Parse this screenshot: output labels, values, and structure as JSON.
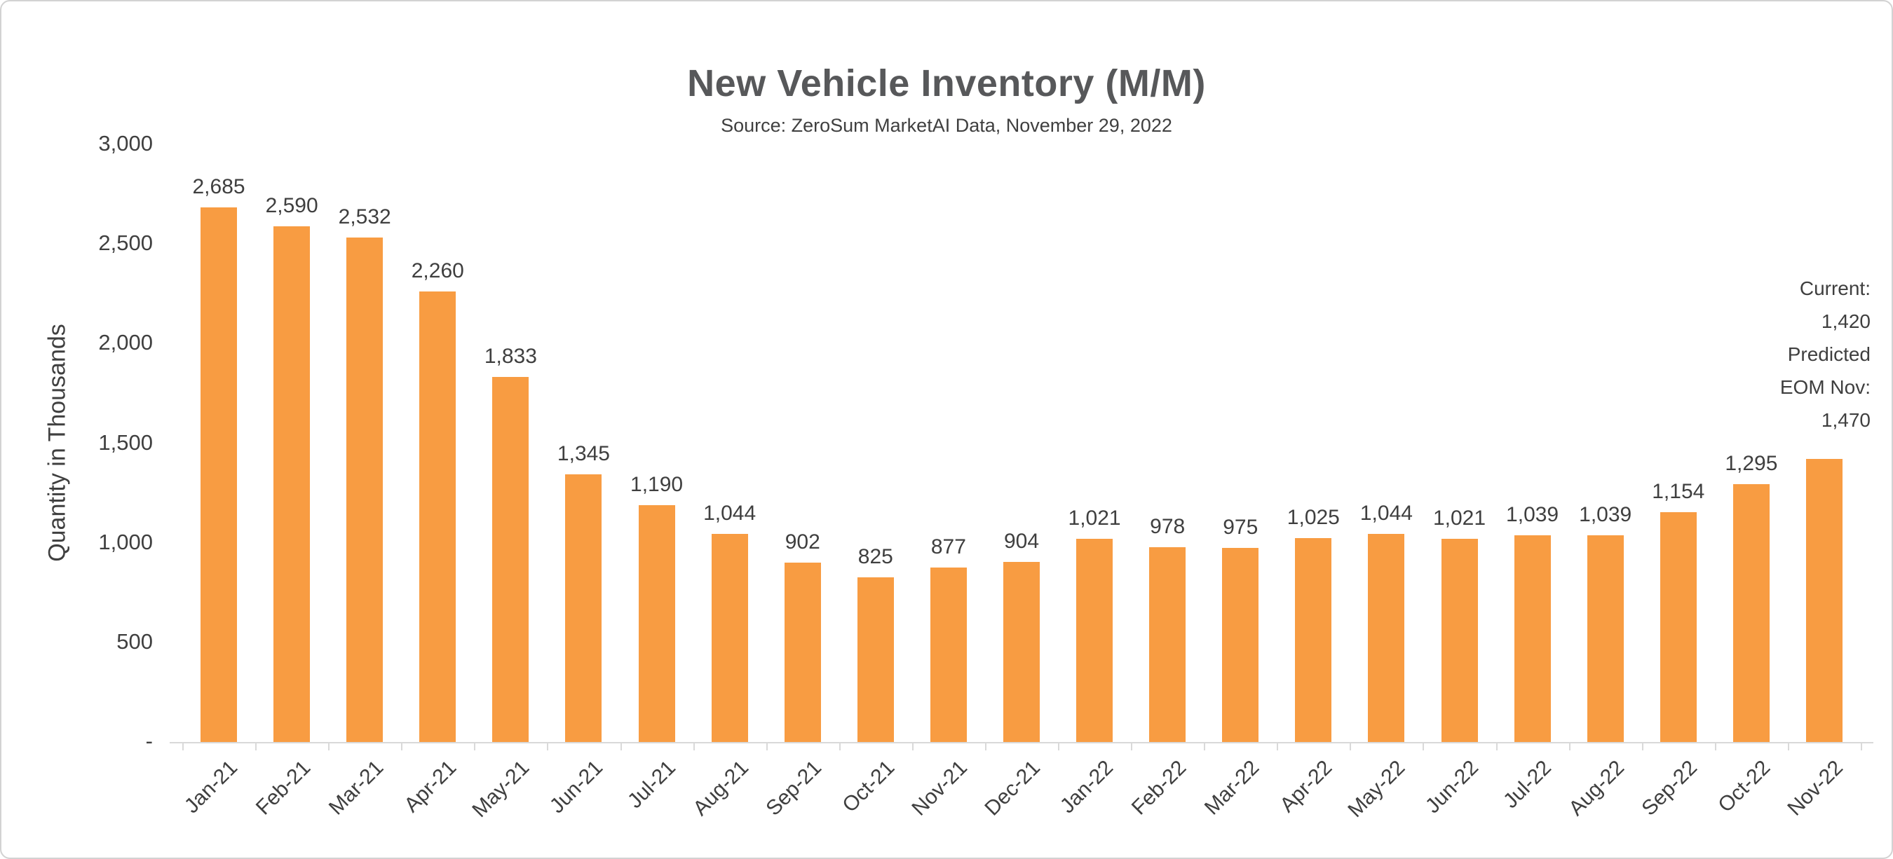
{
  "chart_data": {
    "type": "bar",
    "title": "New Vehicle Inventory (M/M)",
    "subtitle": "Source: ZeroSum MarketAI Data, November 29, 2022",
    "xlabel": "",
    "ylabel": "Quantity in Thousands",
    "ylim": [
      0,
      3000
    ],
    "grid": false,
    "legend": "none",
    "yticks": [
      {
        "value": 3000,
        "label": "3,000"
      },
      {
        "value": 2500,
        "label": "2,500"
      },
      {
        "value": 2000,
        "label": "2,000"
      },
      {
        "value": 1500,
        "label": "1,500"
      },
      {
        "value": 1000,
        "label": "1,000"
      },
      {
        "value": 500,
        "label": "500"
      },
      {
        "value": 0,
        "label": "-"
      }
    ],
    "categories": [
      "Jan-21",
      "Feb-21",
      "Mar-21",
      "Apr-21",
      "May-21",
      "Jun-21",
      "Jul-21",
      "Aug-21",
      "Sep-21",
      "Oct-21",
      "Nov-21",
      "Dec-21",
      "Jan-22",
      "Feb-22",
      "Mar-22",
      "Apr-22",
      "May-22",
      "Jun-22",
      "Jul-22",
      "Aug-22",
      "Sep-22",
      "Oct-22",
      "Nov-22"
    ],
    "values": [
      2685,
      2590,
      2532,
      2260,
      1833,
      1345,
      1190,
      1044,
      902,
      825,
      877,
      904,
      1021,
      978,
      975,
      1025,
      1044,
      1021,
      1039,
      1039,
      1154,
      1295,
      1420
    ],
    "data_labels": [
      "2,685",
      "2,590",
      "2,532",
      "2,260",
      "1,833",
      "1,345",
      "1,190",
      "1,044",
      "902",
      "825",
      "877",
      "904",
      "1,021",
      "978",
      "975",
      "1,025",
      "1,044",
      "1,021",
      "1,039",
      "1,039",
      "1,154",
      "1,295",
      ""
    ],
    "annotation": {
      "lines": [
        "Current:",
        "1,420",
        "Predicted",
        "EOM Nov:",
        "1,470"
      ]
    }
  },
  "colors": {
    "bar": "#f89c42",
    "title": "#57585a",
    "text": "#3f3f3f",
    "axis_line": "#d9d9d9",
    "border": "#d2d2d2"
  }
}
